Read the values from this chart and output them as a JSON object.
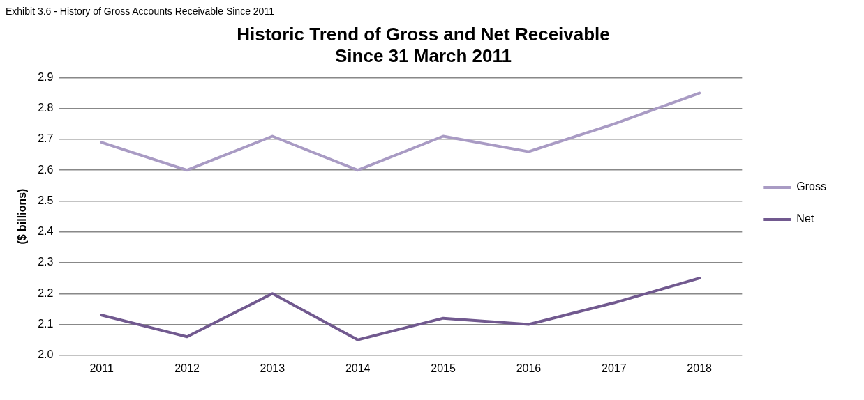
{
  "chart_data": {
    "type": "line",
    "title": [
      "Historic Trend of Gross and Net Receivable",
      "Since 31 March 2011"
    ],
    "ylabel": "($ billions)",
    "annotations": [
      "Exhibit 3.6 - History of Gross Accounts Receivable Since 2011"
    ],
    "categories": [
      "2011",
      "2012",
      "2013",
      "2014",
      "2015",
      "2016",
      "2017",
      "2018"
    ],
    "series": [
      {
        "name": "Gross",
        "color": "#a99bc4",
        "values": [
          2.69,
          2.6,
          2.71,
          2.6,
          2.71,
          2.66,
          2.75,
          2.85
        ]
      },
      {
        "name": "Net",
        "color": "#71598f",
        "values": [
          2.13,
          2.06,
          2.2,
          2.05,
          2.12,
          2.1,
          2.17,
          2.25
        ]
      }
    ],
    "ylim": [
      2.0,
      2.9
    ],
    "yticks": [
      {
        "value": 2.0,
        "label": "2.0"
      },
      2.1,
      2.2,
      2.3,
      2.4,
      2.5,
      2.6,
      2.7,
      2.8,
      2.9
    ],
    "grid": "y",
    "legend": "right",
    "marker": "none",
    "line_style": "solid"
  }
}
